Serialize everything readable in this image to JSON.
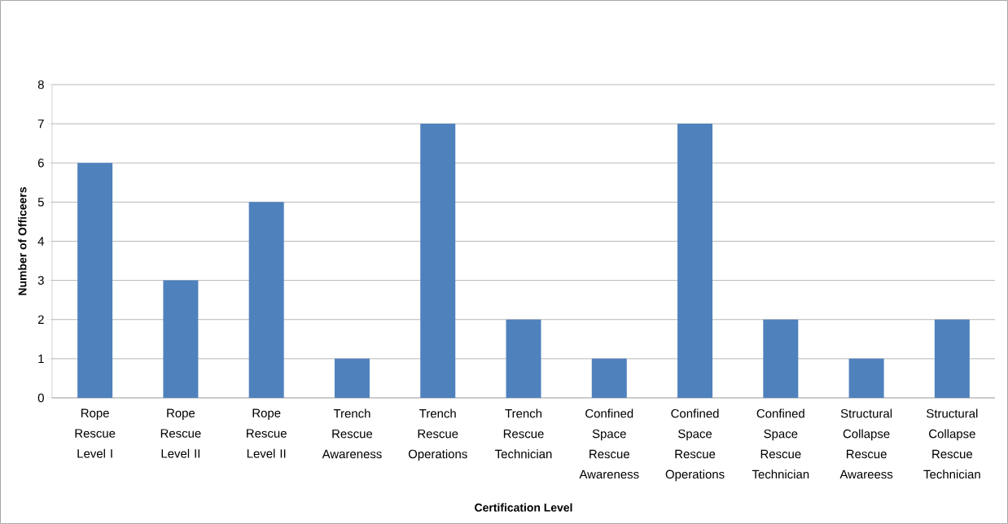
{
  "chart_data": {
    "type": "bar",
    "xlabel": "Certification Level",
    "ylabel": "Number of Officeers",
    "categories": [
      "Rope Rescue Level I",
      "Rope Rescue Level II",
      "Rope Rescue Level II",
      "Trench Rescue Awareness",
      "Trench Rescue Operations",
      "Trench Rescue Technician",
      "Confined Space Rescue Awareness",
      "Confined Space Rescue Operations",
      "Confined Space Rescue Technician",
      "Structural Collapse Rescue Awareess",
      "Structural Collapse Rescue Technician"
    ],
    "values": [
      6,
      3,
      5,
      1,
      7,
      2,
      1,
      7,
      2,
      1,
      2
    ],
    "color": "#4f81bd",
    "ylim": [
      0,
      8
    ],
    "yticks": [
      0,
      1,
      2,
      3,
      4,
      5,
      6,
      7,
      8
    ],
    "grid": "y"
  }
}
